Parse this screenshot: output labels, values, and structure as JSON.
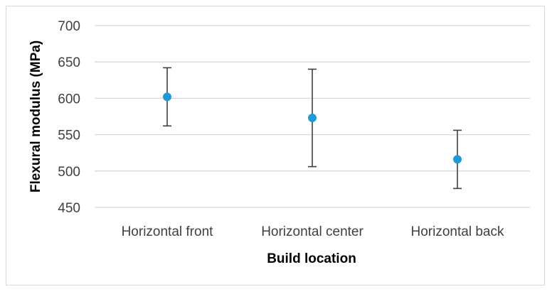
{
  "chart_data": {
    "type": "scatter",
    "title": "",
    "xlabel": "Build location",
    "ylabel": "Flexural modulus (MPa)",
    "categories": [
      "Horizontal front",
      "Horizontal center",
      "Horizontal back"
    ],
    "values": [
      602,
      573,
      516
    ],
    "error_low": [
      562,
      506,
      476
    ],
    "error_high": [
      642,
      640,
      556
    ],
    "ylim": [
      450,
      700
    ],
    "yticks": [
      "450",
      "500",
      "550",
      "600",
      "650",
      "700"
    ],
    "grid": true,
    "legend": "none",
    "colors": {
      "marker": "#1f9bd7",
      "error_bar": "#404040",
      "grid": "#d9d9d9",
      "frame": "#d9d9d9"
    }
  }
}
